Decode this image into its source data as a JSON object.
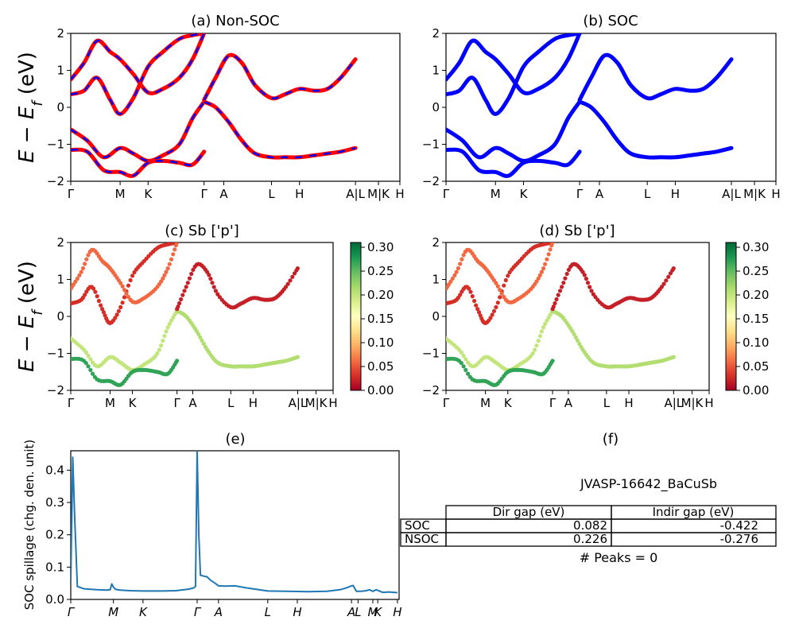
{
  "panels": {
    "a": {
      "title": "(a) Non-SOC"
    },
    "b": {
      "title": "(b) SOC"
    },
    "c": {
      "title": "(c)  Sb ['p']"
    },
    "d": {
      "title": "(d) Sb ['p']"
    },
    "e": {
      "title": "(e)"
    },
    "f": {
      "title": "(f)"
    }
  },
  "band_axis": {
    "ylabel": "E − E_f (eV)",
    "yticks": [
      "2",
      "1",
      "0",
      "−1",
      "−2"
    ],
    "kpath_labels": [
      "Γ",
      "M",
      "K",
      "Γ",
      "A",
      "L",
      "H",
      "A|L",
      "M|K",
      "H"
    ]
  },
  "colorbar": {
    "ticks": [
      "0.30",
      "0.25",
      "0.20",
      "0.15",
      "0.10",
      "0.05",
      "0.00"
    ]
  },
  "spillage": {
    "ylabel": "SOC spillage (chg. den. unit)",
    "yticks": [
      "0.4",
      "0.3",
      "0.2",
      "0.1",
      "0.0"
    ],
    "xticks": [
      "Γ",
      "M",
      "K",
      "Γ",
      "A",
      "L",
      "H",
      "A",
      "L",
      "M",
      "K",
      "H"
    ]
  },
  "summary": {
    "material": "JVASP-16642_BaCuSb",
    "headers": [
      "Dir gap (eV)",
      "Indir gap (eV)"
    ],
    "rows": [
      {
        "label": "SOC",
        "dir": "0.082",
        "indir": "-0.422"
      },
      {
        "label": "NSOC",
        "dir": "0.226",
        "indir": "-0.276"
      }
    ],
    "peaks": "# Peaks = 0"
  },
  "chart_data": [
    {
      "type": "line",
      "id": "a",
      "title": "(a) Non-SOC",
      "ylabel": "E − E_f (eV)",
      "ylim": [
        -2,
        2
      ],
      "xlim": [
        0,
        100
      ],
      "kpoints": [
        {
          "label": "Γ",
          "x": 0
        },
        {
          "label": "M",
          "x": 15
        },
        {
          "label": "K",
          "x": 23.5
        },
        {
          "label": "Γ",
          "x": 40.5
        },
        {
          "label": "A",
          "x": 46.5
        },
        {
          "label": "L",
          "x": 61
        },
        {
          "label": "H",
          "x": 69.5
        },
        {
          "label": "A|L",
          "x": 86.5
        },
        {
          "label": "M|K",
          "x": 93.5
        },
        {
          "label": "H",
          "x": 100
        }
      ],
      "series_style": "red solid with blue dashes",
      "series": [
        {
          "x": [
            0,
            4,
            8,
            12,
            15,
            19,
            23.5,
            28,
            33,
            37,
            40.5
          ],
          "y": [
            0.35,
            0.45,
            0.8,
            0.2,
            -0.18,
            0.25,
            1.1,
            1.5,
            1.85,
            1.95,
            2
          ]
        },
        {
          "x": [
            0,
            4,
            8,
            12,
            15,
            19,
            23.5,
            28,
            33,
            37,
            40.5
          ],
          "y": [
            0.75,
            1.2,
            1.8,
            1.5,
            1.3,
            0.9,
            0.4,
            0.5,
            0.8,
            1.3,
            2
          ]
        },
        {
          "x": [
            0,
            5,
            10,
            15,
            19,
            23.5,
            28,
            33,
            37,
            40.5
          ],
          "y": [
            -0.6,
            -0.9,
            -1.35,
            -1.1,
            -1.25,
            -1.45,
            -1.3,
            -1.0,
            -0.3,
            0.15
          ]
        },
        {
          "x": [
            0,
            5,
            10,
            15,
            19,
            23.5,
            28,
            33,
            37,
            40.5
          ],
          "y": [
            -1.15,
            -1.2,
            -1.7,
            -1.75,
            -1.85,
            -1.5,
            -1.45,
            -1.5,
            -1.55,
            -1.2
          ]
        },
        {
          "x": [
            40.5,
            44,
            48,
            52,
            56,
            61,
            65,
            69.5,
            74,
            78,
            82,
            86.5
          ],
          "y": [
            0.15,
            0.0,
            -0.4,
            -0.9,
            -1.25,
            -1.35,
            -1.35,
            -1.35,
            -1.3,
            -1.25,
            -1.2,
            -1.1
          ]
        },
        {
          "x": [
            40.5,
            44,
            48,
            52,
            56,
            61,
            65,
            69.5,
            74,
            78,
            82,
            86.5
          ],
          "y": [
            0.2,
            0.8,
            1.4,
            1.2,
            0.6,
            0.25,
            0.35,
            0.5,
            0.45,
            0.5,
            0.8,
            1.3
          ]
        }
      ]
    },
    {
      "type": "line",
      "id": "b",
      "title": "(b) SOC",
      "ylabel": "",
      "ylim": [
        -2,
        2
      ],
      "xlim": [
        0,
        100
      ],
      "kpoints": [
        {
          "label": "Γ",
          "x": 0
        },
        {
          "label": "M",
          "x": 15
        },
        {
          "label": "K",
          "x": 23.5
        },
        {
          "label": "Γ",
          "x": 40.5
        },
        {
          "label": "A",
          "x": 46.5
        },
        {
          "label": "L",
          "x": 61
        },
        {
          "label": "H",
          "x": 69.5
        },
        {
          "label": "A|L",
          "x": 86.5
        },
        {
          "label": "M|K",
          "x": 93.5
        },
        {
          "label": "H",
          "x": 100
        }
      ],
      "series_style": "blue solid",
      "series": [
        {
          "x": [
            0,
            4,
            8,
            12,
            15,
            19,
            23.5,
            28,
            33,
            37,
            40.5
          ],
          "y": [
            0.35,
            0.45,
            0.8,
            0.2,
            -0.18,
            0.25,
            1.1,
            1.5,
            1.85,
            1.95,
            2
          ]
        },
        {
          "x": [
            0,
            4,
            8,
            12,
            15,
            19,
            23.5,
            28,
            33,
            37,
            40.5
          ],
          "y": [
            0.75,
            1.2,
            1.8,
            1.5,
            1.3,
            0.9,
            0.4,
            0.5,
            0.8,
            1.3,
            2
          ]
        },
        {
          "x": [
            0,
            5,
            10,
            15,
            19,
            23.5,
            28,
            33,
            37,
            40.5
          ],
          "y": [
            -0.6,
            -0.9,
            -1.35,
            -1.1,
            -1.25,
            -1.45,
            -1.3,
            -1.0,
            -0.3,
            0.15
          ]
        },
        {
          "x": [
            0,
            5,
            10,
            15,
            19,
            23.5,
            28,
            33,
            37,
            40.5
          ],
          "y": [
            -1.15,
            -1.2,
            -1.7,
            -1.75,
            -1.85,
            -1.5,
            -1.45,
            -1.5,
            -1.55,
            -1.2
          ]
        },
        {
          "x": [
            40.5,
            44,
            48,
            52,
            56,
            61,
            65,
            69.5,
            74,
            78,
            82,
            86.5
          ],
          "y": [
            0.15,
            0.0,
            -0.4,
            -0.9,
            -1.25,
            -1.35,
            -1.35,
            -1.35,
            -1.3,
            -1.25,
            -1.2,
            -1.1
          ]
        },
        {
          "x": [
            40.5,
            44,
            48,
            52,
            56,
            61,
            65,
            69.5,
            74,
            78,
            82,
            86.5
          ],
          "y": [
            0.2,
            0.8,
            1.4,
            1.2,
            0.6,
            0.25,
            0.35,
            0.5,
            0.45,
            0.5,
            0.8,
            1.3
          ]
        }
      ]
    },
    {
      "type": "scatter",
      "id": "c",
      "title": "(c)  Sb ['p']",
      "ylabel": "E − E_f (eV)",
      "ylim": [
        -2,
        2
      ],
      "xlim": [
        0,
        100
      ],
      "colorbar": {
        "cmap": "RdYlGn",
        "range": [
          0,
          0.31
        ]
      },
      "kpoints": [
        {
          "label": "Γ",
          "x": 0
        },
        {
          "label": "M",
          "x": 15
        },
        {
          "label": "K",
          "x": 23.5
        },
        {
          "label": "Γ",
          "x": 40.5
        },
        {
          "label": "A",
          "x": 46.5
        },
        {
          "label": "L",
          "x": 61
        },
        {
          "label": "H",
          "x": 69.5
        },
        {
          "label": "A|L",
          "x": 86.5
        },
        {
          "label": "M|K",
          "x": 93.5
        },
        {
          "label": "H",
          "x": 100
        }
      ],
      "bands": [
        {
          "x": [
            0,
            4,
            8,
            12,
            15,
            19,
            23.5,
            28,
            33,
            37,
            40.5
          ],
          "y": [
            0.35,
            0.45,
            0.8,
            0.2,
            -0.18,
            0.25,
            1.1,
            1.5,
            1.85,
            1.95,
            2
          ],
          "w": 0.03
        },
        {
          "x": [
            0,
            4,
            8,
            12,
            15,
            19,
            23.5,
            28,
            33,
            37,
            40.5
          ],
          "y": [
            0.75,
            1.2,
            1.8,
            1.5,
            1.3,
            0.9,
            0.4,
            0.5,
            0.8,
            1.3,
            2
          ],
          "w": 0.06
        },
        {
          "x": [
            0,
            5,
            10,
            15,
            19,
            23.5,
            28,
            33,
            37,
            40.5
          ],
          "y": [
            -0.6,
            -0.9,
            -1.35,
            -1.1,
            -1.25,
            -1.45,
            -1.3,
            -1.0,
            -0.3,
            0.15
          ],
          "w": 0.2
        },
        {
          "x": [
            0,
            5,
            10,
            15,
            19,
            23.5,
            28,
            33,
            37,
            40.5
          ],
          "y": [
            -1.15,
            -1.2,
            -1.7,
            -1.75,
            -1.85,
            -1.5,
            -1.45,
            -1.5,
            -1.55,
            -1.2
          ],
          "w": 0.27
        },
        {
          "x": [
            40.5,
            44,
            48,
            52,
            56,
            61,
            65,
            69.5,
            74,
            78,
            82,
            86.5
          ],
          "y": [
            0.15,
            0.0,
            -0.4,
            -0.9,
            -1.25,
            -1.35,
            -1.35,
            -1.35,
            -1.3,
            -1.25,
            -1.2,
            -1.1
          ],
          "w": 0.21
        },
        {
          "x": [
            40.5,
            44,
            48,
            52,
            56,
            61,
            65,
            69.5,
            74,
            78,
            82,
            86.5
          ],
          "y": [
            0.2,
            0.8,
            1.4,
            1.2,
            0.6,
            0.25,
            0.35,
            0.5,
            0.45,
            0.5,
            0.8,
            1.3
          ],
          "w": 0.02
        }
      ]
    },
    {
      "type": "scatter",
      "id": "d",
      "title": "(d) Sb ['p']",
      "ylabel": "",
      "ylim": [
        -2,
        2
      ],
      "xlim": [
        0,
        100
      ],
      "colorbar": {
        "cmap": "RdYlGn",
        "range": [
          0,
          0.31
        ]
      },
      "kpoints": [
        {
          "label": "Γ",
          "x": 0
        },
        {
          "label": "M",
          "x": 15
        },
        {
          "label": "K",
          "x": 23.5
        },
        {
          "label": "Γ",
          "x": 40.5
        },
        {
          "label": "A",
          "x": 46.5
        },
        {
          "label": "L",
          "x": 61
        },
        {
          "label": "H",
          "x": 69.5
        },
        {
          "label": "A|L",
          "x": 86.5
        },
        {
          "label": "M|K",
          "x": 93.5
        },
        {
          "label": "H",
          "x": 100
        }
      ],
      "bands": [
        {
          "x": [
            0,
            4,
            8,
            12,
            15,
            19,
            23.5,
            28,
            33,
            37,
            40.5
          ],
          "y": [
            0.35,
            0.45,
            0.8,
            0.2,
            -0.18,
            0.25,
            1.1,
            1.5,
            1.85,
            1.95,
            2
          ],
          "w": 0.03
        },
        {
          "x": [
            0,
            4,
            8,
            12,
            15,
            19,
            23.5,
            28,
            33,
            37,
            40.5
          ],
          "y": [
            0.75,
            1.2,
            1.8,
            1.5,
            1.3,
            0.9,
            0.4,
            0.5,
            0.8,
            1.3,
            2
          ],
          "w": 0.06
        },
        {
          "x": [
            0,
            5,
            10,
            15,
            19,
            23.5,
            28,
            33,
            37,
            40.5
          ],
          "y": [
            -0.6,
            -0.9,
            -1.35,
            -1.1,
            -1.25,
            -1.45,
            -1.3,
            -1.0,
            -0.3,
            0.15
          ],
          "w": 0.2
        },
        {
          "x": [
            0,
            5,
            10,
            15,
            19,
            23.5,
            28,
            33,
            37,
            40.5
          ],
          "y": [
            -1.15,
            -1.2,
            -1.7,
            -1.75,
            -1.85,
            -1.5,
            -1.45,
            -1.5,
            -1.55,
            -1.2
          ],
          "w": 0.27
        },
        {
          "x": [
            40.5,
            44,
            48,
            52,
            56,
            61,
            65,
            69.5,
            74,
            78,
            82,
            86.5
          ],
          "y": [
            0.15,
            0.0,
            -0.4,
            -0.9,
            -1.25,
            -1.35,
            -1.35,
            -1.35,
            -1.3,
            -1.25,
            -1.2,
            -1.1
          ],
          "w": 0.21
        },
        {
          "x": [
            40.5,
            44,
            48,
            52,
            56,
            61,
            65,
            69.5,
            74,
            78,
            82,
            86.5
          ],
          "y": [
            0.2,
            0.8,
            1.4,
            1.2,
            0.6,
            0.25,
            0.35,
            0.5,
            0.45,
            0.5,
            0.8,
            1.3
          ],
          "w": 0.02
        }
      ]
    },
    {
      "type": "line",
      "id": "e",
      "title": "(e)",
      "ylabel": "SOC spillage (chg. den. unit)",
      "ylim": [
        0,
        0.46
      ],
      "xlim": [
        0,
        100
      ],
      "kpoints": [
        {
          "label": "Γ",
          "x": 0
        },
        {
          "label": "M",
          "x": 13
        },
        {
          "label": "K",
          "x": 22
        },
        {
          "label": "Γ",
          "x": 38.5
        },
        {
          "label": "A",
          "x": 45
        },
        {
          "label": "L",
          "x": 60
        },
        {
          "label": "H",
          "x": 69
        },
        {
          "label": "A",
          "x": 85.5
        },
        {
          "label": "L",
          "x": 87.5
        },
        {
          "label": "M",
          "x": 92
        },
        {
          "label": "K",
          "x": 93.5
        },
        {
          "label": "H",
          "x": 99.5
        }
      ],
      "series": [
        {
          "name": "",
          "color": "#1f77b4",
          "x": [
            0,
            0.6,
            1.2,
            2,
            4,
            8,
            11,
            12,
            12.5,
            13,
            13.7,
            15,
            18,
            22,
            28,
            32,
            36,
            37.5,
            38,
            38.5,
            39,
            39.5,
            40.5,
            41.5,
            42.5,
            44,
            45,
            47,
            50,
            54,
            60,
            66,
            72,
            78,
            82,
            84,
            85.5,
            86,
            87,
            88.5,
            90,
            91,
            92,
            93,
            95,
            97,
            99.5
          ],
          "y": [
            0.05,
            0.44,
            0.25,
            0.04,
            0.033,
            0.03,
            0.029,
            0.03,
            0.048,
            0.038,
            0.031,
            0.029,
            0.027,
            0.026,
            0.026,
            0.027,
            0.032,
            0.036,
            0.04,
            0.46,
            0.2,
            0.075,
            0.072,
            0.07,
            0.06,
            0.05,
            0.042,
            0.041,
            0.042,
            0.035,
            0.026,
            0.025,
            0.024,
            0.025,
            0.03,
            0.036,
            0.042,
            0.043,
            0.025,
            0.025,
            0.027,
            0.03,
            0.025,
            0.03,
            0.022,
            0.023,
            0.021
          ]
        }
      ]
    }
  ]
}
